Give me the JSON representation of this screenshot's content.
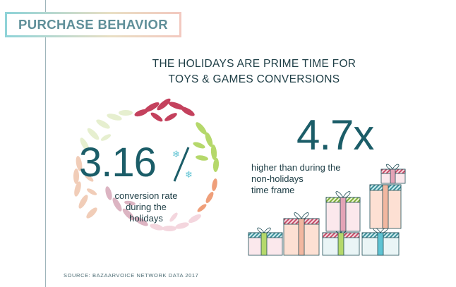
{
  "section_label": "PURCHASE BEHAVIOR",
  "headline": {
    "line1": "THE HOLIDAYS ARE PRIME TIME FOR",
    "line2": "TOYS & GAMES CONVERSIONS"
  },
  "left_stat": {
    "value": "3.16",
    "line1": "conversion rate",
    "line2": "during the",
    "line3": "holidays"
  },
  "right_stat": {
    "value": "4.7x",
    "line1": "higher than during the",
    "line2": "non-holidays",
    "line3": "time frame"
  },
  "source": "SOURCE: BAZAARVOICE NETWORK DATA 2017",
  "colors": {
    "teal_dark": "#1b5d68",
    "teal_light": "#5fc3d3",
    "pink": "#e3a3b6",
    "red": "#c4415d",
    "green": "#b5d86b"
  }
}
